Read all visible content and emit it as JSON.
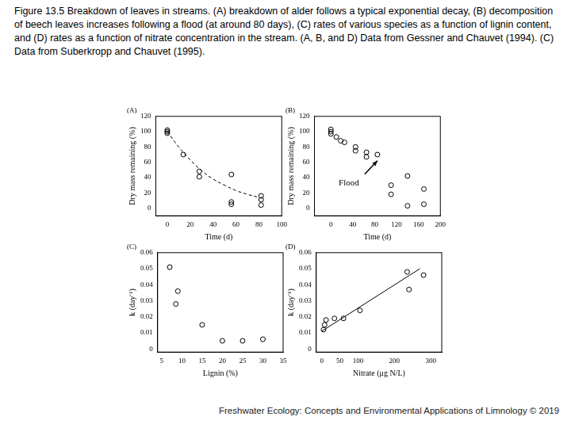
{
  "caption": "Figure 13.5 Breakdown of leaves in streams. (A) breakdown of alder follows a typical exponential decay, (B) decomposition of beech leaves increases following a flood (at around 80 days), (C) rates of various species as a function of lignin content, and (D) rates as a function of nitrate concentration in the stream. (A, B, and D) Data from Gessner and Chauvet (1994). (C) Data from Suberkropp and Chauvet (1995).",
  "footer": "Freshwater Ecology: Concepts and Environmental Applications of Limnology © 2019",
  "chart_data": [
    {
      "type": "scatter",
      "title": "(A)",
      "x_label": "Time (d)",
      "y_label": "Dry mass remaining (%)",
      "xlim": [
        -10,
        100
      ],
      "ylim": [
        -10,
        120
      ],
      "xticks": [
        0,
        20,
        40,
        60,
        80,
        100
      ],
      "yticks": [
        0,
        20,
        40,
        60,
        80,
        100,
        120
      ],
      "grid": false,
      "series": [
        {
          "type": "scatter",
          "marker": "circle",
          "color": "#000000",
          "x": [
            0,
            0,
            0,
            14,
            28,
            28,
            56,
            56,
            56,
            82,
            82,
            82
          ],
          "values": [
            98,
            100,
            102,
            70,
            48,
            41,
            44,
            8,
            5,
            16,
            11,
            4
          ]
        },
        {
          "type": "line",
          "line_style": "dashed",
          "color": "#000000",
          "x": [
            0,
            10,
            20,
            30,
            40,
            50,
            60,
            70,
            80
          ],
          "values": [
            100,
            80,
            63,
            49,
            38,
            30,
            23,
            18,
            14
          ]
        }
      ]
    },
    {
      "type": "scatter",
      "title": "(B)",
      "x_label": "Time (d)",
      "y_label": "Dry mass remaining (%)",
      "xlim": [
        -30,
        200
      ],
      "ylim": [
        -10,
        120
      ],
      "xticks": [
        0,
        40,
        80,
        120,
        160,
        200
      ],
      "yticks": [
        0,
        20,
        40,
        60,
        80,
        100,
        120
      ],
      "grid": false,
      "annotations": [
        {
          "text": "Flood",
          "x": 85,
          "y": 65
        }
      ],
      "series": [
        {
          "type": "scatter",
          "marker": "circle",
          "color": "#000000",
          "x": [
            0,
            0,
            0,
            10,
            18,
            25,
            45,
            45,
            65,
            65,
            85,
            110,
            110,
            140,
            140,
            170,
            170
          ],
          "values": [
            97,
            100,
            103,
            93,
            88,
            86,
            80,
            75,
            73,
            67,
            70,
            30,
            18,
            42,
            3,
            25,
            5
          ]
        }
      ]
    },
    {
      "type": "scatter",
      "title": "(C)",
      "x_label": "Lignin (%)",
      "y_label": "k (day⁻¹)",
      "xlim": [
        4,
        35
      ],
      "ylim": [
        -0.002,
        0.06
      ],
      "xticks": [
        5,
        10,
        15,
        20,
        25,
        30,
        35
      ],
      "yticks": [
        0,
        0.01,
        0.02,
        0.03,
        0.04,
        0.05,
        0.06
      ],
      "grid": false,
      "series": [
        {
          "type": "scatter",
          "marker": "circle",
          "color": "#000000",
          "x": [
            7,
            9,
            8.5,
            15,
            20,
            25,
            30
          ],
          "values": [
            0.051,
            0.036,
            0.028,
            0.015,
            0.005,
            0.005,
            0.006
          ]
        }
      ]
    },
    {
      "type": "scatter",
      "title": "(D)",
      "x_label": "Nitrate (μg N/L)",
      "y_label": "k (day⁻¹)",
      "xlim": [
        -15,
        330
      ],
      "ylim": [
        -0.002,
        0.06
      ],
      "xticks": [
        0,
        50,
        100,
        200,
        300
      ],
      "yticks": [
        0,
        0.01,
        0.02,
        0.03,
        0.04,
        0.05,
        0.06
      ],
      "grid": false,
      "series": [
        {
          "type": "scatter",
          "marker": "circle",
          "color": "#000000",
          "x": [
            5,
            8,
            12,
            35,
            60,
            105,
            235,
            240,
            280
          ],
          "values": [
            0.012,
            0.015,
            0.018,
            0.019,
            0.019,
            0.024,
            0.048,
            0.037,
            0.046
          ]
        },
        {
          "type": "line",
          "line_style": "solid",
          "color": "#000000",
          "x": [
            0,
            270
          ],
          "values": [
            0.011,
            0.05
          ]
        }
      ]
    }
  ]
}
